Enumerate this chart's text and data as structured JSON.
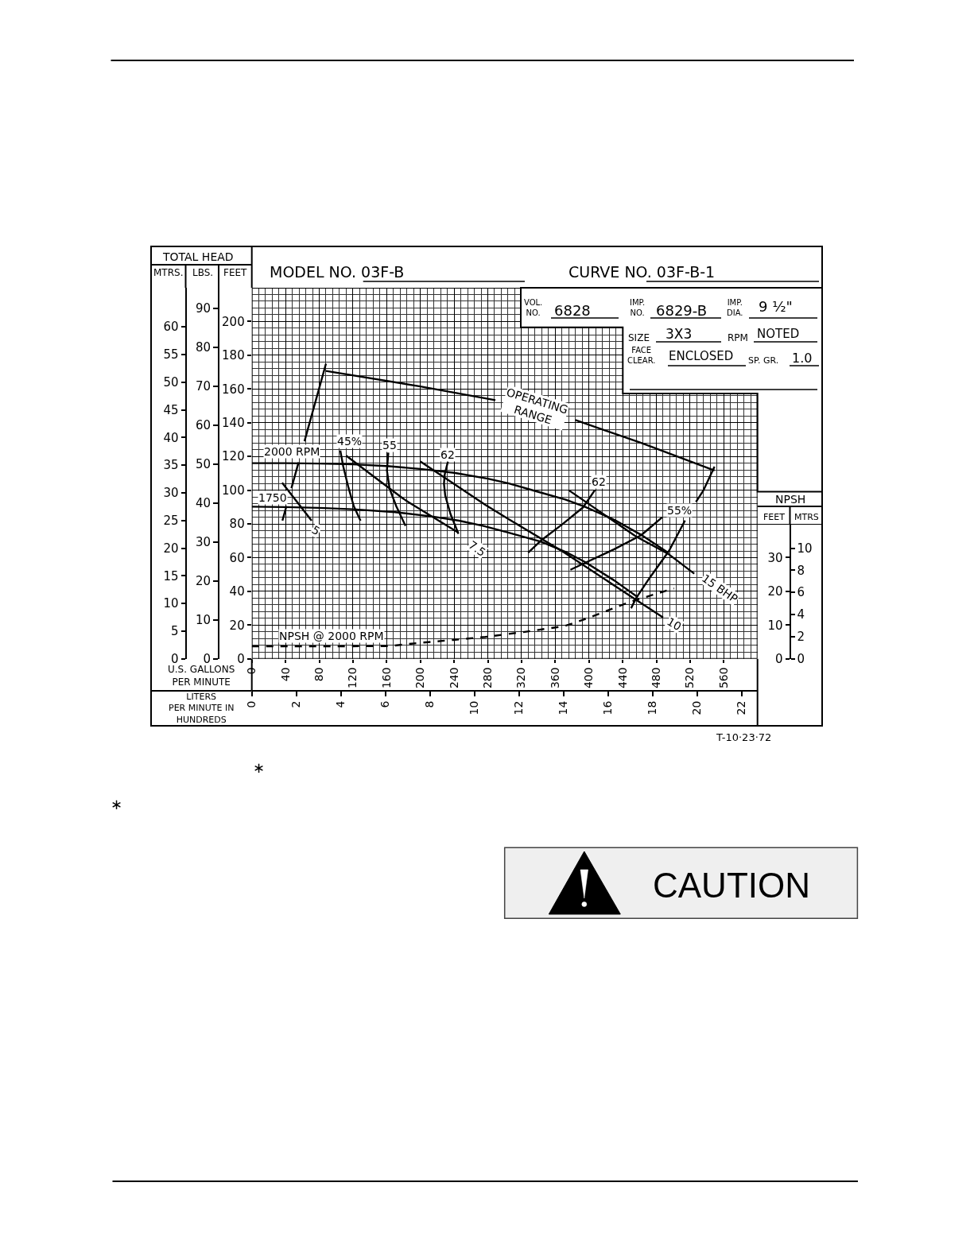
{
  "chart_data": [
    {
      "type": "line",
      "title": "MODEL NO. 03F-B",
      "subtitle": "CURVE NO. 03F-B-1",
      "xlabel": "U.S. GALLONS\nPER MINUTE",
      "x2label": "LITERS\nPER MINUTE IN HUNDREDS",
      "ylabel": "FEET",
      "y2label": "MTRS.",
      "y3label": "LBS.",
      "xlim": [
        0,
        600
      ],
      "xticks": [
        0,
        40,
        80,
        120,
        160,
        200,
        240,
        280,
        320,
        360,
        400,
        440,
        480,
        520,
        560
      ],
      "x2lim": [
        0,
        22.71
      ],
      "x2ticks": [
        0,
        2,
        4,
        6,
        8,
        10,
        12,
        14,
        16,
        18,
        20,
        22
      ],
      "ylim": [
        0,
        220
      ],
      "yticks": [
        0,
        20,
        40,
        60,
        80,
        100,
        120,
        140,
        160,
        180,
        200
      ],
      "y2lim": [
        0,
        67.06
      ],
      "y2ticks": [
        0,
        5,
        10,
        15,
        20,
        25,
        30,
        35,
        40,
        45,
        50,
        55,
        60
      ],
      "y3lim": [
        0,
        95.24
      ],
      "y3ticks": [
        0,
        10,
        20,
        30,
        40,
        50,
        60,
        70,
        80,
        90
      ],
      "grid": true,
      "marker": "none",
      "line_style": "solid",
      "series": [
        {
          "color": "#000000",
          "x": [
            0,
            40,
            80,
            120,
            160,
            200,
            240,
            280,
            305,
            340,
            372,
            395,
            430,
            462,
            494
          ],
          "values": [
            116,
            116,
            115.8,
            115.3,
            114.3,
            112.6,
            110.3,
            106.8,
            104,
            99,
            94.5,
            90.2,
            82.5,
            73.5,
            63
          ]
        },
        {
          "color": "#000000",
          "x": [
            0,
            40,
            80,
            120,
            170,
            215,
            246,
            275,
            305,
            343,
            372,
            395,
            430,
            458
          ],
          "values": [
            90.2,
            90,
            89.5,
            88.7,
            87,
            84.3,
            81.9,
            78.8,
            74.8,
            69.5,
            63.5,
            57.5,
            46.5,
            36.5
          ]
        },
        {
          "color": "#000000",
          "x": [
            36,
            71
          ],
          "values": [
            104.4,
            81.9
          ]
        },
        {
          "color": "#000000",
          "x": [
            112,
            146,
            179,
            186,
            245
          ],
          "values": [
            120.4,
            107.6,
            95.2,
            92.9,
            74.8
          ]
        },
        {
          "color": "#000000",
          "x": [
            200,
            277,
            305,
            371,
            430,
            488
          ],
          "values": [
            117,
            91.3,
            82.7,
            63,
            43.5,
            24.5
          ]
        },
        {
          "color": "#000000",
          "x": [
            376,
            456,
            494,
            525
          ],
          "values": [
            100,
            72.5,
            62.3,
            50.5
          ]
        },
        {
          "color": "#000000",
          "x": [
            105,
            108.5,
            114.7,
            121,
            129
          ],
          "values": [
            123.5,
            114.1,
            101.5,
            90.5,
            81.9
          ]
        },
        {
          "color": "#000000",
          "x": [
            162,
            160.3,
            163.5,
            171.4,
            182.4
          ],
          "values": [
            122.3,
            111.7,
            100.8,
            90.5,
            78.8
          ]
        },
        {
          "color": "#000000",
          "x": [
            232.7,
            228.9,
            228,
            229.5,
            235.8,
            245.2
          ],
          "values": [
            117,
            109.4,
            103.9,
            96.8,
            85.8,
            74.1
          ]
        },
        {
          "color": "#000000",
          "x": [
            407,
            393,
            368,
            343,
            328
          ],
          "values": [
            100,
            89.8,
            79.6,
            70.1,
            63
          ]
        },
        {
          "color": "#000000",
          "x": [
            487,
            462,
            430,
            395,
            378
          ],
          "values": [
            84,
            73.3,
            65,
            56.8,
            52.8
          ]
        },
        {
          "color": "#000000",
          "x": [
            88,
            200,
            289,
            336,
            384,
            462,
            549
          ],
          "values": [
            170.7,
            161.5,
            153.4,
            null,
            141.6,
            128,
            111.7
          ]
        },
        {
          "color": "#000000",
          "x": [
            88,
            62.5,
            59,
            55.5,
            47,
            44,
            41.1,
            36.3
          ],
          "values": [
            175,
            129,
            null,
            116.5,
            101.2,
            null,
            90.5,
            82
          ]
        },
        {
          "color": "#000000",
          "x": [
            549,
            536,
            527,
            521,
            514,
            495,
            472,
            456,
            450
          ],
          "values": [
            114,
            100,
            93,
            null,
            82,
            64,
            48,
            36,
            30
          ]
        }
      ],
      "annotations": [
        "TOTAL HEAD",
        "VOL.\nNO.",
        "6828",
        "IMP.\nNO.",
        "6829-B",
        "IMP.\nDIA.",
        "9 ½\"",
        "SIZE",
        "3X3",
        "RPM",
        "NOTED",
        "FACE\nCLEAR.",
        "ENCLOSED",
        "SP. GR.",
        "1.0",
        "2000 RPM",
        "OPERATING\nRANGE",
        "15 BHP",
        "T-10·23·72",
        "∗",
        "∗",
        "CAUTION",
        {
          "text": "1750",
          "x": 25,
          "y": 95.5
        },
        {
          "text": "45%",
          "x": 116.3,
          "y": 129
        },
        {
          "text": "55",
          "x": 163.5,
          "y": 126.7
        },
        {
          "text": "62",
          "x": 232.6,
          "y": 121.2
        },
        {
          "text": "5",
          "x": 76,
          "y": 76.4
        },
        {
          "text": "7.5",
          "x": 267.3,
          "y": 65.4
        },
        {
          "text": "10",
          "x": 501.5,
          "y": 20.6
        },
        {
          "text": "62",
          "x": 412,
          "y": 105
        },
        {
          "text": "55%",
          "x": 507.8,
          "y": 88.2
        }
      ]
    },
    {
      "type": "line",
      "ylabel": "FEET",
      "y2label": "MTRS",
      "xlim": [
        0,
        600
      ],
      "tick_labels": "y",
      "ylim": [
        0,
        40
      ],
      "yticks": [
        0,
        10,
        20,
        30
      ],
      "y2lim": [
        0,
        12.19
      ],
      "y2ticks": [
        0,
        2,
        4,
        6,
        8,
        10
      ],
      "marker": "none",
      "line_style": "dashed",
      "series": [
        {
          "color": "#000000",
          "x": [
            0,
            100,
            164,
            201,
            239,
            277,
            324,
            371,
            396,
            450,
            501
          ],
          "values": [
            3.7,
            3.7,
            3.8,
            4.8,
            5.6,
            6.5,
            8,
            9.7,
            11.8,
            17,
            20.9
          ]
        }
      ],
      "annotations": [
        "NPSH",
        "NPSH @ 2000 RPM"
      ]
    }
  ]
}
